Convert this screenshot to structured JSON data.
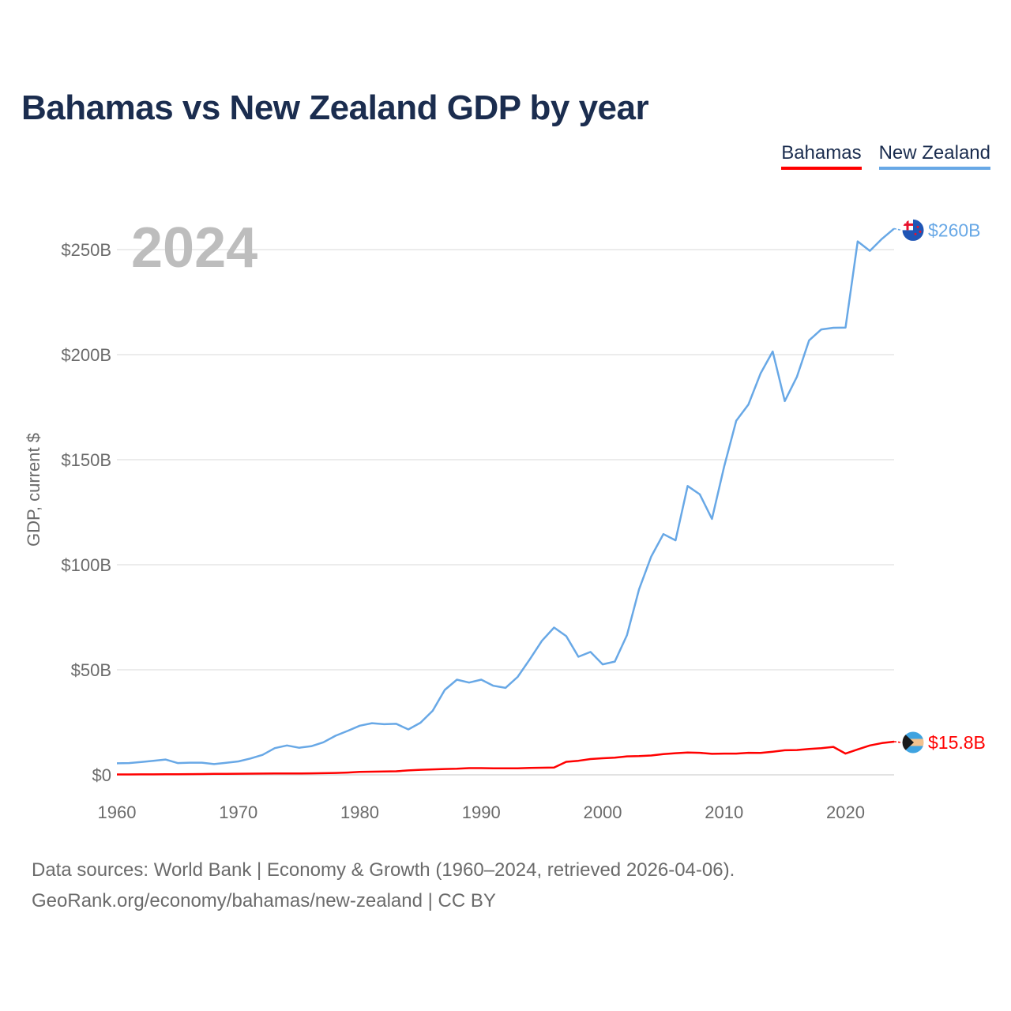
{
  "title": "Bahamas vs New Zealand GDP by year",
  "legend": [
    {
      "name": "Bahamas",
      "color": "#ff0000"
    },
    {
      "name": "New Zealand",
      "color": "#68a8e6"
    }
  ],
  "year_label": "2024",
  "footer": {
    "line1": "Data sources: World Bank | Economy & Growth (1960–2024, retrieved 2026-04-06).",
    "line2": "GeoRank.org/economy/bahamas/new-zealand | CC BY"
  },
  "chart_data": {
    "type": "line",
    "title": "Bahamas vs New Zealand GDP by year",
    "xlabel": "",
    "ylabel": "GDP, current $",
    "xlim": [
      1960,
      2024
    ],
    "ylim": [
      0,
      250
    ],
    "unit": "billions USD",
    "x_ticks": [
      1960,
      1970,
      1980,
      1990,
      2000,
      2010,
      2020
    ],
    "x_tick_labels": [
      "1960",
      "1970",
      "1980",
      "1990",
      "2000",
      "2010",
      "2020"
    ],
    "y_ticks": [
      0,
      50,
      100,
      150,
      200,
      250
    ],
    "y_tick_labels": [
      "$0",
      "$50B",
      "$100B",
      "$150B",
      "$200B",
      "$250B"
    ],
    "grid": true,
    "x": [
      1960,
      1961,
      1962,
      1963,
      1964,
      1965,
      1966,
      1967,
      1968,
      1969,
      1970,
      1971,
      1972,
      1973,
      1974,
      1975,
      1976,
      1977,
      1978,
      1979,
      1980,
      1981,
      1982,
      1983,
      1984,
      1985,
      1986,
      1987,
      1988,
      1989,
      1990,
      1991,
      1992,
      1993,
      1994,
      1995,
      1996,
      1997,
      1998,
      1999,
      2000,
      2001,
      2002,
      2003,
      2004,
      2005,
      2006,
      2007,
      2008,
      2009,
      2010,
      2011,
      2012,
      2013,
      2014,
      2015,
      2016,
      2017,
      2018,
      2019,
      2020,
      2021,
      2022,
      2023,
      2024
    ],
    "series": [
      {
        "name": "Bahamas",
        "color": "#ff0000",
        "end_label": "$15.8B",
        "flag": "bahamas-flag-icon",
        "values": [
          0.17,
          0.19,
          0.21,
          0.23,
          0.26,
          0.3,
          0.34,
          0.39,
          0.44,
          0.49,
          0.54,
          0.57,
          0.6,
          0.63,
          0.65,
          0.65,
          0.7,
          0.8,
          0.9,
          1.1,
          1.4,
          1.5,
          1.6,
          1.7,
          2.1,
          2.4,
          2.6,
          2.8,
          2.9,
          3.2,
          3.2,
          3.1,
          3.1,
          3.1,
          3.3,
          3.4,
          3.5,
          6.2,
          6.7,
          7.5,
          7.9,
          8.2,
          8.8,
          8.9,
          9.2,
          9.9,
          10.3,
          10.6,
          10.5,
          10.0,
          10.1,
          10.1,
          10.5,
          10.4,
          11.0,
          11.7,
          11.8,
          12.3,
          12.7,
          13.3,
          10.1,
          12.1,
          14.0,
          15.1,
          15.8
        ]
      },
      {
        "name": "New Zealand",
        "color": "#68a8e6",
        "end_label": "$260B",
        "flag": "new-zealand-flag-icon",
        "values": [
          5.5,
          5.6,
          6.1,
          6.7,
          7.3,
          5.6,
          5.8,
          5.8,
          5.1,
          5.7,
          6.4,
          7.8,
          9.5,
          12.7,
          14.0,
          12.9,
          13.6,
          15.5,
          18.6,
          20.9,
          23.4,
          24.6,
          24.1,
          24.3,
          21.6,
          24.8,
          30.5,
          40.4,
          45.3,
          43.9,
          45.3,
          42.4,
          41.4,
          46.6,
          55.0,
          63.8,
          70.1,
          66.0,
          56.2,
          58.5,
          52.6,
          53.9,
          66.5,
          88.3,
          103.9,
          114.6,
          111.6,
          137.5,
          133.5,
          121.8,
          146.7,
          168.5,
          176.2,
          191.0,
          201.5,
          177.9,
          189.5,
          206.8,
          212.0,
          212.8,
          212.9,
          253.9,
          249.4,
          255.1,
          260.0
        ]
      }
    ]
  }
}
